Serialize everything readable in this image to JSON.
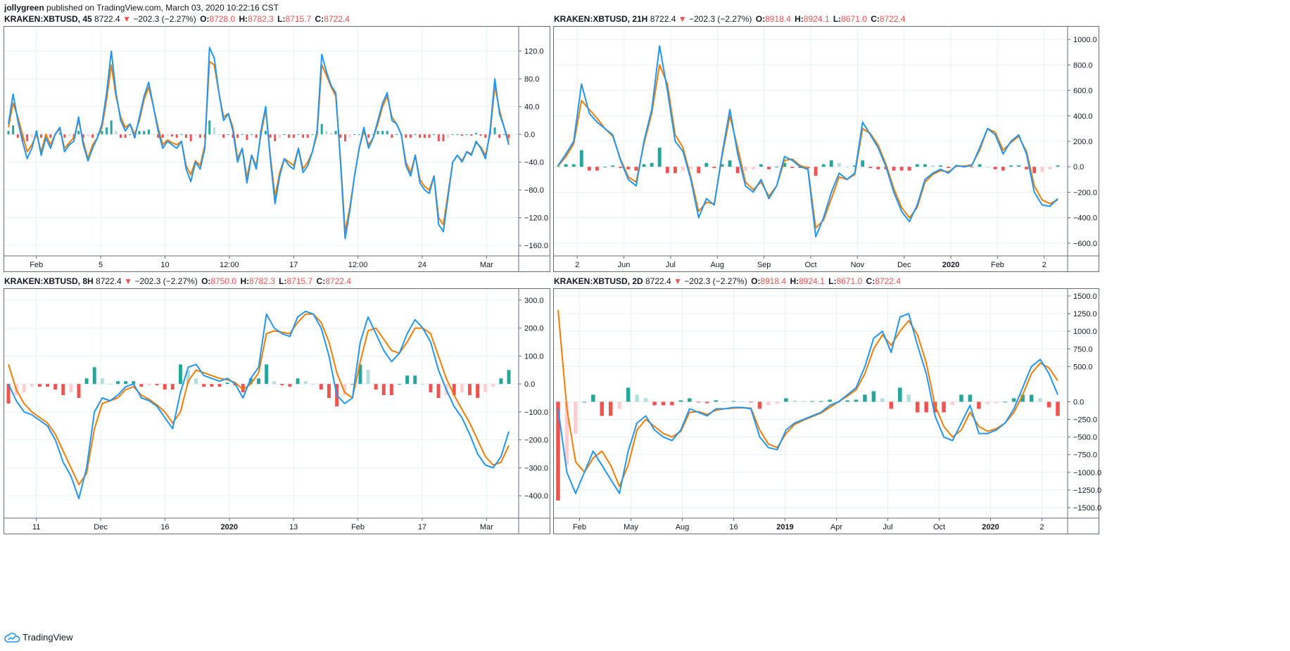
{
  "publication": {
    "author": "jollygreen",
    "text": "published on TradingView.com, March 03, 2020 10:22:16 CST"
  },
  "footer": {
    "brand": "TradingView",
    "icon": "tradingview-cloud-icon"
  },
  "colors": {
    "macd_line": "#2196f3",
    "signal_line": "#f57c00",
    "hist_pos_strong": "#26a69a",
    "hist_pos_weak": "#b2dfdb",
    "hist_neg_strong": "#ef5350",
    "hist_neg_weak": "#ffcdd2",
    "grid": "#e9eff5",
    "border": "#666c7a",
    "quote_red": "#ef5350"
  },
  "panes": [
    {
      "symbol": "KRAKEN:XBTUSD, 45",
      "last": "8722.4",
      "change": "−202.3 (−2.27%)",
      "ohlc": {
        "O": "8728.0",
        "H": "8782.3",
        "L": "8715.7",
        "C": "8722.4"
      }
    },
    {
      "symbol": "KRAKEN:XBTUSD, 21H",
      "last": "8722.4",
      "change": "−202.3 (−2.27%)",
      "ohlc": {
        "O": "8918.4",
        "H": "8924.1",
        "L": "8671.0",
        "C": "8722.4"
      }
    },
    {
      "symbol": "KRAKEN:XBTUSD, 8H",
      "last": "8722.4",
      "change": "−202.3 (−2.27%)",
      "ohlc": {
        "O": "8750.0",
        "H": "8782.3",
        "L": "8715.7",
        "C": "8722.4"
      }
    },
    {
      "symbol": "KRAKEN:XBTUSD, 2D",
      "last": "8722.4",
      "change": "−202.3 (−2.27%)",
      "ohlc": {
        "O": "8918.4",
        "H": "8924.1",
        "L": "8671.0",
        "C": "8722.4"
      }
    }
  ],
  "chart_data": [
    {
      "type": "line",
      "title": "KRAKEN:XBTUSD, 45",
      "x_ticks": [
        "Feb",
        "5",
        "10",
        "12:00",
        "17",
        "12:00",
        "24",
        "Mar"
      ],
      "y_ticks": [
        "120.0",
        "80.0",
        "40.0",
        "0.0",
        "−40.0",
        "−80.0",
        "−120.0",
        "−160.0"
      ],
      "ylim": [
        -175,
        155
      ],
      "grid": true,
      "series": [
        {
          "values": [
            15,
            58,
            20,
            -10,
            -35,
            -20,
            5,
            -30,
            -5,
            -20,
            0,
            10,
            -25,
            -15,
            -10,
            25,
            -15,
            -38,
            -20,
            -5,
            15,
            60,
            120,
            60,
            20,
            5,
            15,
            -5,
            25,
            55,
            75,
            40,
            5,
            -20,
            -10,
            -15,
            -20,
            -10,
            -50,
            -68,
            -40,
            -50,
            -20,
            125,
            110,
            60,
            20,
            30,
            5,
            -40,
            -20,
            -70,
            -30,
            -50,
            5,
            40,
            -35,
            -100,
            -60,
            -35,
            -45,
            -50,
            -20,
            -55,
            -45,
            -25,
            5,
            115,
            90,
            70,
            60,
            -40,
            -150,
            -110,
            -60,
            -20,
            10,
            -20,
            -5,
            20,
            45,
            60,
            20,
            15,
            0,
            -45,
            -60,
            -30,
            -70,
            -80,
            -85,
            -60,
            -130,
            -140,
            -90,
            -40,
            -30,
            -40,
            -25,
            -30,
            -10,
            -20,
            -35,
            5,
            80,
            30,
            10,
            -15
          ]
        },
        {
          "values": [
            10,
            45,
            25,
            0,
            -25,
            -15,
            0,
            -25,
            0,
            -15,
            0,
            8,
            -20,
            -12,
            -5,
            20,
            -10,
            -35,
            -15,
            -5,
            10,
            50,
            100,
            55,
            25,
            10,
            15,
            0,
            20,
            50,
            68,
            40,
            10,
            -15,
            -8,
            -12,
            -15,
            -10,
            -45,
            -58,
            -38,
            -45,
            -15,
            105,
            100,
            60,
            25,
            30,
            10,
            -35,
            -20,
            -62,
            -30,
            -45,
            0,
            35,
            -30,
            -90,
            -55,
            -35,
            -40,
            -45,
            -20,
            -50,
            -40,
            -25,
            0,
            100,
            85,
            68,
            55,
            -35,
            -140,
            -105,
            -60,
            -20,
            5,
            -15,
            -5,
            15,
            40,
            55,
            25,
            15,
            0,
            -40,
            -55,
            -30,
            -65,
            -75,
            -80,
            -60,
            -120,
            -130,
            -85,
            -40,
            -30,
            -38,
            -25,
            -28,
            -12,
            -18,
            -30,
            0,
            70,
            35,
            10,
            -10
          ]
        }
      ]
    },
    {
      "type": "line",
      "title": "KRAKEN:XBTUSD, 21H",
      "x_ticks": [
        "2",
        "Jun",
        "Jul",
        "Aug",
        "Sep",
        "Oct",
        "Nov",
        "Dec",
        "2020",
        "Feb",
        "2"
      ],
      "y_ticks": [
        "1000.0",
        "800.0",
        "600.0",
        "400.0",
        "200.0",
        "0.0",
        "−200.0",
        "−400.0",
        "−600.0"
      ],
      "ylim": [
        -700,
        1100
      ],
      "grid": true,
      "series": [
        {
          "values": [
            10,
            100,
            200,
            650,
            420,
            350,
            300,
            250,
            50,
            -100,
            -150,
            200,
            450,
            950,
            600,
            200,
            120,
            -100,
            -400,
            -250,
            -300,
            100,
            450,
            100,
            -150,
            -200,
            -100,
            -250,
            -150,
            80,
            50,
            0,
            -20,
            -550,
            -400,
            -200,
            -50,
            -100,
            -50,
            350,
            250,
            150,
            0,
            -200,
            -350,
            -430,
            -300,
            -100,
            -50,
            -20,
            -50,
            10,
            0,
            10,
            150,
            300,
            250,
            100,
            200,
            250,
            100,
            -200,
            -300,
            -310,
            -250
          ]
        },
        {
          "values": [
            5,
            80,
            180,
            520,
            450,
            380,
            300,
            240,
            60,
            -80,
            -120,
            180,
            420,
            800,
            650,
            250,
            150,
            -80,
            -350,
            -280,
            -290,
            80,
            400,
            150,
            -120,
            -180,
            -120,
            -230,
            -150,
            50,
            60,
            10,
            -10,
            -480,
            -420,
            -250,
            -80,
            -100,
            -60,
            300,
            260,
            170,
            20,
            -170,
            -320,
            -400,
            -320,
            -120,
            -60,
            -30,
            -40,
            5,
            5,
            15,
            130,
            300,
            270,
            130,
            190,
            240,
            120,
            -150,
            -260,
            -290,
            -260
          ]
        }
      ]
    },
    {
      "type": "line",
      "title": "KRAKEN:XBTUSD, 8H",
      "x_ticks": [
        "11",
        "Dec",
        "16",
        "2020",
        "13",
        "Feb",
        "17",
        "Mar"
      ],
      "y_ticks": [
        "300.0",
        "200.0",
        "100.0",
        "0.0",
        "−100.0",
        "−200.0",
        "−300.0",
        "−400.0"
      ],
      "ylim": [
        -480,
        340
      ],
      "grid": true,
      "series": [
        {
          "values": [
            0,
            -60,
            -100,
            -110,
            -130,
            -150,
            -200,
            -280,
            -330,
            -410,
            -300,
            -100,
            -50,
            -60,
            -40,
            -10,
            0,
            -50,
            -60,
            -80,
            -120,
            -160,
            -30,
            60,
            70,
            30,
            20,
            10,
            20,
            0,
            -50,
            20,
            60,
            250,
            200,
            180,
            170,
            240,
            260,
            250,
            200,
            100,
            -40,
            -70,
            -50,
            150,
            240,
            180,
            120,
            80,
            110,
            180,
            230,
            200,
            150,
            50,
            -20,
            -80,
            -120,
            -180,
            -250,
            -290,
            -300,
            -260,
            -170
          ]
        },
        {
          "values": [
            70,
            -20,
            -70,
            -100,
            -120,
            -140,
            -180,
            -240,
            -300,
            -360,
            -320,
            -160,
            -70,
            -60,
            -50,
            -20,
            -10,
            -40,
            -55,
            -75,
            -100,
            -140,
            -100,
            10,
            50,
            40,
            30,
            20,
            15,
            5,
            -20,
            0,
            40,
            180,
            190,
            185,
            180,
            220,
            250,
            250,
            220,
            150,
            40,
            -30,
            -50,
            80,
            190,
            200,
            160,
            120,
            110,
            150,
            200,
            200,
            180,
            100,
            20,
            -40,
            -90,
            -140,
            -200,
            -260,
            -290,
            -280,
            -220
          ]
        }
      ]
    },
    {
      "type": "line",
      "title": "KRAKEN:XBTUSD, 2D",
      "x_ticks": [
        "Feb",
        "May",
        "Aug",
        "16",
        "2019",
        "Apr",
        "Jul",
        "Oct",
        "2020",
        "2"
      ],
      "y_ticks": [
        "1500.0",
        "1250.0",
        "1000.0",
        "750.0",
        "500.0",
        "0.0",
        "−250.0",
        "−500.0",
        "−750.0",
        "−1000.0",
        "−1250.0",
        "−1500.0"
      ],
      "ylim": [
        -1650,
        1600
      ],
      "grid": true,
      "series": [
        {
          "values": [
            -100,
            -1000,
            -1300,
            -1000,
            -700,
            -900,
            -1100,
            -1300,
            -700,
            -300,
            -200,
            -400,
            -500,
            -550,
            -400,
            -100,
            -150,
            -200,
            -100,
            -100,
            -80,
            -80,
            -100,
            -500,
            -650,
            -680,
            -400,
            -300,
            -250,
            -200,
            -150,
            -50,
            0,
            100,
            200,
            500,
            900,
            1000,
            700,
            1200,
            1250,
            800,
            400,
            -200,
            -500,
            -550,
            -300,
            -50,
            -450,
            -450,
            -400,
            -300,
            -100,
            200,
            500,
            600,
            400,
            100
          ]
        },
        {
          "values": [
            1300,
            -100,
            -850,
            -1000,
            -800,
            -700,
            -900,
            -1200,
            -900,
            -400,
            -250,
            -350,
            -450,
            -500,
            -420,
            -150,
            -140,
            -180,
            -120,
            -100,
            -90,
            -85,
            -90,
            -400,
            -600,
            -650,
            -450,
            -320,
            -260,
            -210,
            -160,
            -80,
            0,
            80,
            170,
            400,
            750,
            950,
            800,
            1000,
            1150,
            950,
            550,
            -50,
            -350,
            -500,
            -400,
            -150,
            -350,
            -420,
            -380,
            -300,
            -150,
            100,
            400,
            550,
            480,
            300
          ]
        }
      ]
    }
  ]
}
